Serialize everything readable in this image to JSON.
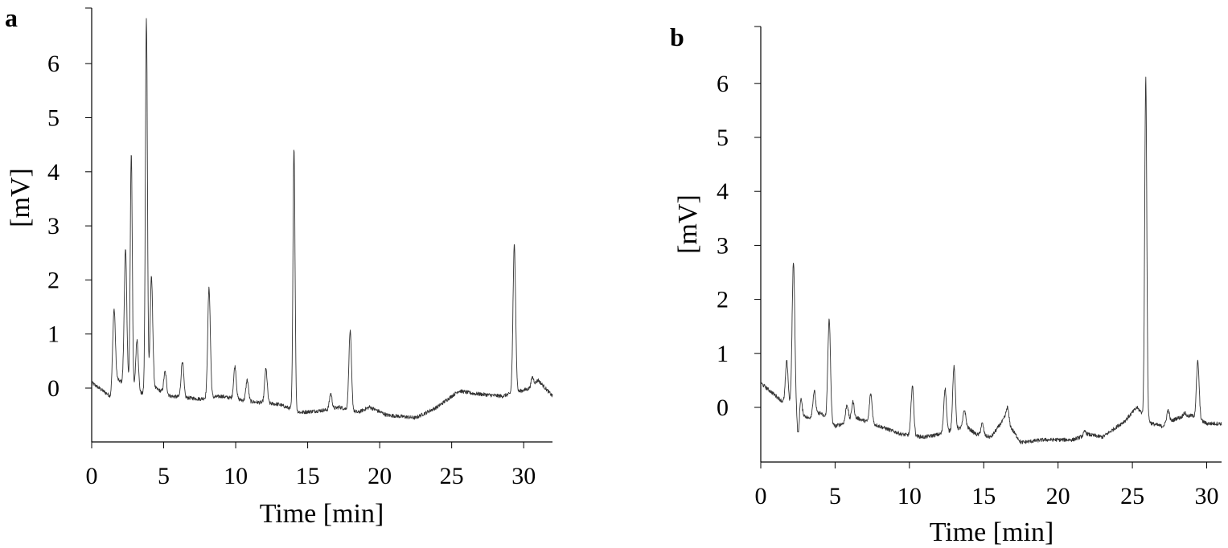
{
  "chart_data": [
    {
      "type": "line",
      "panel_label": "a",
      "xlabel": "Time [min]",
      "ylabel": "[mV]",
      "xlim": [
        0,
        32
      ],
      "ylim": [
        -1,
        7
      ],
      "xticks": [
        0,
        5,
        10,
        15,
        20,
        25,
        30
      ],
      "yticks": [
        0,
        1,
        2,
        3,
        4,
        5,
        6
      ],
      "baseline": [
        [
          0,
          0.1
        ],
        [
          1.3,
          -0.15
        ],
        [
          1.6,
          0.2
        ],
        [
          2.6,
          0.0
        ],
        [
          3.5,
          -0.1
        ],
        [
          4.4,
          0.0
        ],
        [
          5.5,
          -0.15
        ],
        [
          7.5,
          -0.2
        ],
        [
          9,
          -0.15
        ],
        [
          11,
          -0.25
        ],
        [
          13,
          -0.3
        ],
        [
          14.5,
          -0.45
        ],
        [
          16.5,
          -0.4
        ],
        [
          17.2,
          -0.35
        ],
        [
          18.5,
          -0.45
        ],
        [
          19.3,
          -0.35
        ],
        [
          20.5,
          -0.5
        ],
        [
          22.5,
          -0.55
        ],
        [
          24,
          -0.35
        ],
        [
          25.5,
          -0.05
        ],
        [
          26.5,
          -0.1
        ],
        [
          28.5,
          -0.15
        ],
        [
          30.5,
          0.0
        ],
        [
          31,
          0.15
        ],
        [
          32,
          -0.15
        ]
      ],
      "peaks": [
        {
          "x": 1.55,
          "y": 1.45
        },
        {
          "x": 2.35,
          "y": 2.55
        },
        {
          "x": 2.75,
          "y": 4.35
        },
        {
          "x": 3.15,
          "y": 0.9
        },
        {
          "x": 3.8,
          "y": 6.85
        },
        {
          "x": 4.15,
          "y": 2.05
        },
        {
          "x": 5.1,
          "y": 0.3
        },
        {
          "x": 6.3,
          "y": 0.5
        },
        {
          "x": 8.15,
          "y": 1.85
        },
        {
          "x": 9.95,
          "y": 0.4
        },
        {
          "x": 10.8,
          "y": 0.15
        },
        {
          "x": 12.1,
          "y": 0.35
        },
        {
          "x": 14.05,
          "y": 4.45
        },
        {
          "x": 16.6,
          "y": -0.1
        },
        {
          "x": 17.95,
          "y": 1.05
        },
        {
          "x": 29.35,
          "y": 2.65
        },
        {
          "x": 30.6,
          "y": 0.2
        }
      ]
    },
    {
      "type": "line",
      "panel_label": "b",
      "xlabel": "Time [min]",
      "ylabel": "[mV]",
      "xlim": [
        0,
        31
      ],
      "ylim": [
        -1,
        7
      ],
      "xticks": [
        0,
        5,
        10,
        15,
        20,
        25,
        30
      ],
      "yticks": [
        0,
        1,
        2,
        3,
        4,
        5,
        6
      ],
      "baseline": [
        [
          0,
          0.45
        ],
        [
          1.5,
          0.1
        ],
        [
          2.4,
          -0.05
        ],
        [
          3.2,
          -0.2
        ],
        [
          4.0,
          -0.1
        ],
        [
          5,
          -0.35
        ],
        [
          6.5,
          -0.2
        ],
        [
          8,
          -0.35
        ],
        [
          9.5,
          -0.5
        ],
        [
          11,
          -0.55
        ],
        [
          12,
          -0.5
        ],
        [
          13.8,
          -0.35
        ],
        [
          14.5,
          -0.5
        ],
        [
          15.5,
          -0.55
        ],
        [
          16.4,
          -0.2
        ],
        [
          17.5,
          -0.65
        ],
        [
          19,
          -0.6
        ],
        [
          21,
          -0.6
        ],
        [
          22,
          -0.5
        ],
        [
          23,
          -0.55
        ],
        [
          24.5,
          -0.25
        ],
        [
          25.3,
          0.0
        ],
        [
          26.3,
          -0.3
        ],
        [
          27,
          -0.35
        ],
        [
          28,
          -0.2
        ],
        [
          29,
          -0.15
        ],
        [
          30,
          -0.3
        ],
        [
          31,
          -0.3
        ]
      ],
      "peaks": [
        {
          "x": 1.75,
          "y": 0.85
        },
        {
          "x": 2.2,
          "y": 2.7
        },
        {
          "x": 2.55,
          "y": -0.7
        },
        {
          "x": 2.65,
          "y": 0.4
        },
        {
          "x": 3.6,
          "y": 0.3
        },
        {
          "x": 4.6,
          "y": 1.62
        },
        {
          "x": 5.8,
          "y": 0.05
        },
        {
          "x": 6.2,
          "y": 0.1
        },
        {
          "x": 7.4,
          "y": 0.25
        },
        {
          "x": 10.2,
          "y": 0.4
        },
        {
          "x": 12.4,
          "y": 0.35
        },
        {
          "x": 13.0,
          "y": 0.75
        },
        {
          "x": 13.7,
          "y": -0.05
        },
        {
          "x": 14.9,
          "y": -0.3
        },
        {
          "x": 16.6,
          "y": 0.0
        },
        {
          "x": 21.8,
          "y": -0.45
        },
        {
          "x": 25.9,
          "y": 6.12
        },
        {
          "x": 27.4,
          "y": -0.05
        },
        {
          "x": 28.5,
          "y": -0.1
        },
        {
          "x": 29.4,
          "y": 0.85
        }
      ]
    }
  ]
}
